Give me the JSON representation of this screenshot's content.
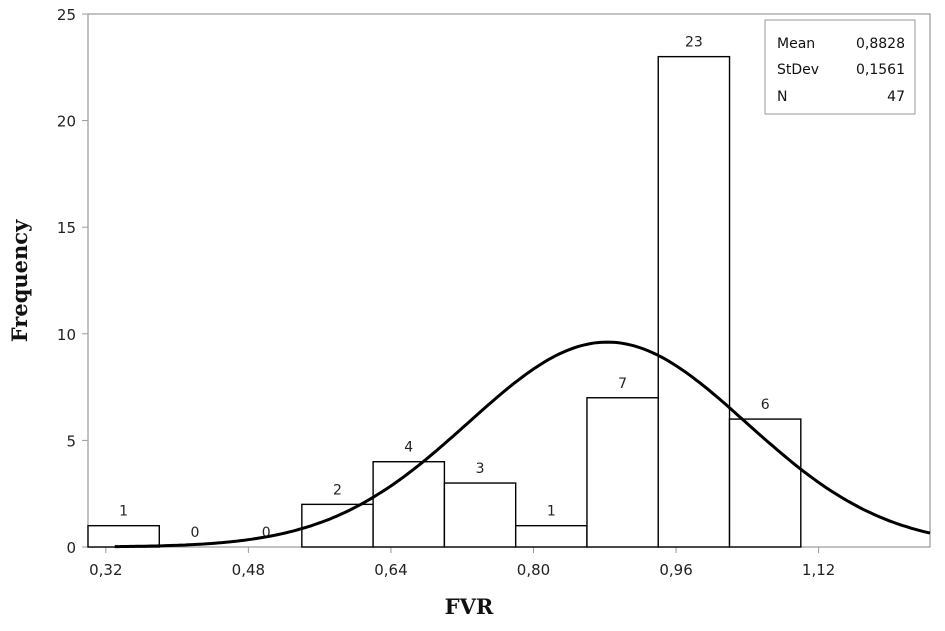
{
  "chart_data": {
    "type": "bar",
    "subtype": "histogram",
    "xlabel": "FVR",
    "ylabel": "Frequency",
    "xlim": [
      0.3,
      1.245
    ],
    "ylim": [
      0,
      25
    ],
    "x_ticks": [
      0.32,
      0.48,
      0.64,
      0.8,
      0.96,
      1.12
    ],
    "x_tick_labels": [
      "0,32",
      "0,48",
      "0,64",
      "0,80",
      "0,96",
      "1,12"
    ],
    "y_ticks": [
      0,
      5,
      10,
      15,
      20,
      25
    ],
    "y_tick_labels": [
      "0",
      "5",
      "10",
      "15",
      "20",
      "25"
    ],
    "bins": [
      {
        "x0": 0.3,
        "x1": 0.38,
        "count": 1,
        "label": "1"
      },
      {
        "x0": 0.38,
        "x1": 0.46,
        "count": 0,
        "label": "0"
      },
      {
        "x0": 0.46,
        "x1": 0.54,
        "count": 0,
        "label": "0"
      },
      {
        "x0": 0.54,
        "x1": 0.62,
        "count": 2,
        "label": "2"
      },
      {
        "x0": 0.62,
        "x1": 0.7,
        "count": 4,
        "label": "4"
      },
      {
        "x0": 0.7,
        "x1": 0.78,
        "count": 3,
        "label": "3"
      },
      {
        "x0": 0.78,
        "x1": 0.86,
        "count": 1,
        "label": "1"
      },
      {
        "x0": 0.86,
        "x1": 0.94,
        "count": 7,
        "label": "7"
      },
      {
        "x0": 0.94,
        "x1": 1.02,
        "count": 23,
        "label": "23"
      },
      {
        "x0": 1.02,
        "x1": 1.1,
        "count": 6,
        "label": "6"
      }
    ],
    "normal_fit": {
      "mean": 0.8828,
      "stdev": 0.1561,
      "n": 47,
      "bin_width": 0.08
    },
    "legend": {
      "placement": "top-right",
      "rows": [
        {
          "label": "Mean",
          "value": "0,8828"
        },
        {
          "label": "StDev",
          "value": "0,1561"
        },
        {
          "label": "N",
          "value": "47"
        }
      ]
    },
    "grid": false,
    "colors": {
      "bar_fill": "#ffffff",
      "bar_stroke": "#000000",
      "curve": "#000000",
      "axis": "#9a9a9a"
    }
  }
}
